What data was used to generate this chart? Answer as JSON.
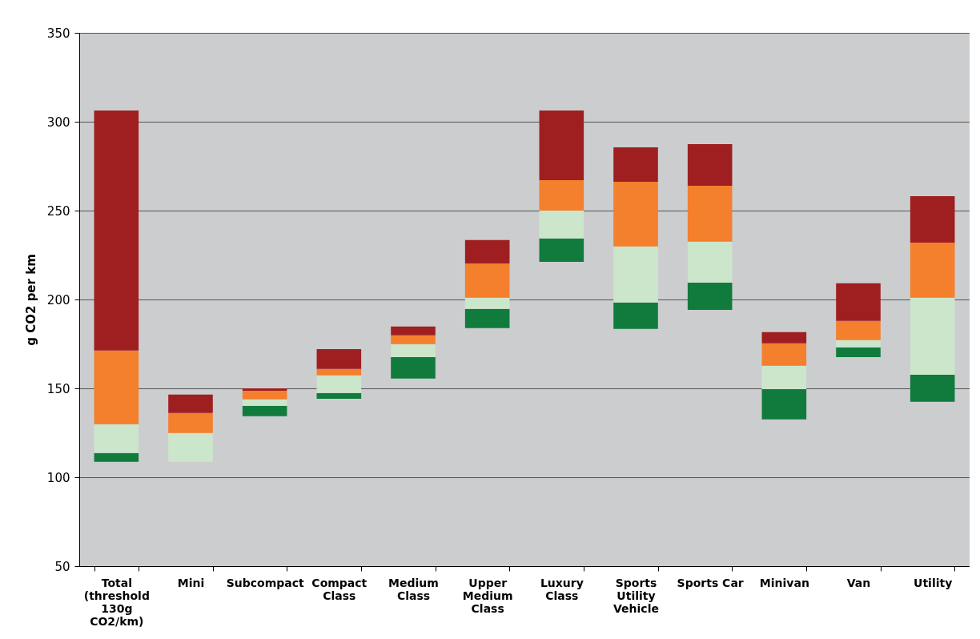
{
  "chart_data": {
    "type": "bar",
    "ylabel": "g CO2 per km",
    "categories": [
      "Total (threshold 130g CO2/km)",
      "Mini",
      "Subcompact",
      "Compact Class",
      "Medium Class",
      "Upper Medium Class",
      "Luxury Class",
      "Sports Utility Vehicle",
      "Sports Car",
      "Minivan",
      "Van",
      "Utility"
    ],
    "series": [
      {
        "color": "#117b3d",
        "base": [
          108.7,
          null,
          134.4,
          144.2,
          155.5,
          183.9,
          221.2,
          183.4,
          194.2,
          132.5,
          167.6,
          142.4
        ],
        "values": [
          4.9,
          null,
          5.8,
          3.2,
          12.1,
          10.8,
          13.1,
          14.9,
          15.3,
          17.1,
          5.5,
          15.3
        ]
      },
      {
        "color": "#cce6cc",
        "base": [
          113.6,
          108.7,
          140.2,
          147.4,
          167.6,
          194.7,
          234.3,
          198.3,
          209.5,
          149.6,
          173.1,
          157.7
        ],
        "values": [
          16.2,
          16.2,
          3.6,
          9.9,
          7.3,
          6.3,
          15.7,
          31.5,
          23.0,
          13.1,
          4.0,
          43.3
        ]
      },
      {
        "color": "#f47f2d",
        "base": [
          129.8,
          124.9,
          143.8,
          157.3,
          174.9,
          201.0,
          250.0,
          229.8,
          232.5,
          162.7,
          177.1,
          201.0
        ],
        "values": [
          41.5,
          11.2,
          4.9,
          3.6,
          4.9,
          19.3,
          17.1,
          36.4,
          31.5,
          12.6,
          10.9,
          31.0
        ]
      },
      {
        "color": "#9f1f20",
        "base": [
          171.3,
          136.1,
          148.7,
          160.9,
          179.8,
          220.3,
          267.1,
          266.2,
          264.0,
          175.3,
          188.0,
          232.0
        ],
        "values": [
          135.0,
          10.4,
          1.3,
          11.2,
          5.0,
          13.1,
          39.2,
          19.4,
          23.4,
          6.3,
          21.1,
          26.1
        ]
      }
    ],
    "ylim": [
      50,
      350
    ],
    "yticks": [
      50,
      100,
      150,
      200,
      250,
      300,
      350
    ],
    "grid": "y",
    "legend": false
  }
}
